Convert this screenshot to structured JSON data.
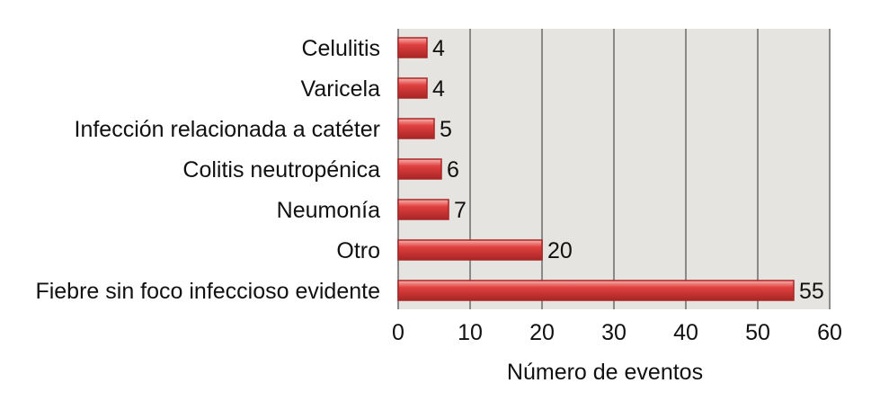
{
  "chart_data": {
    "type": "bar",
    "orientation": "horizontal",
    "categories": [
      "Celulitis",
      "Varicela",
      "Infección relacionada a catéter",
      "Colitis neutropénica",
      "Neumonía",
      "Otro",
      "Fiebre sin foco infeccioso evidente"
    ],
    "values": [
      4,
      4,
      5,
      6,
      7,
      20,
      55
    ],
    "data_labels": [
      "4",
      "4",
      "5",
      "6",
      "7",
      "20",
      "55"
    ],
    "title": "",
    "xlabel": "Número de eventos",
    "ylabel": "",
    "xlim": [
      0,
      60
    ],
    "xticks": [
      0,
      10,
      20,
      30,
      40,
      50,
      60
    ],
    "xtick_labels": [
      "0",
      "10",
      "20",
      "30",
      "40",
      "50",
      "60"
    ],
    "grid": "vertical",
    "legend": "none",
    "colors": {
      "bar": "#e0403f",
      "bar_highlight": "#f7b4b0",
      "bar_edge": "#a82626",
      "plot_background": "#e6e4e1",
      "gridline": "#8a8a8a",
      "text": "#111111"
    }
  }
}
